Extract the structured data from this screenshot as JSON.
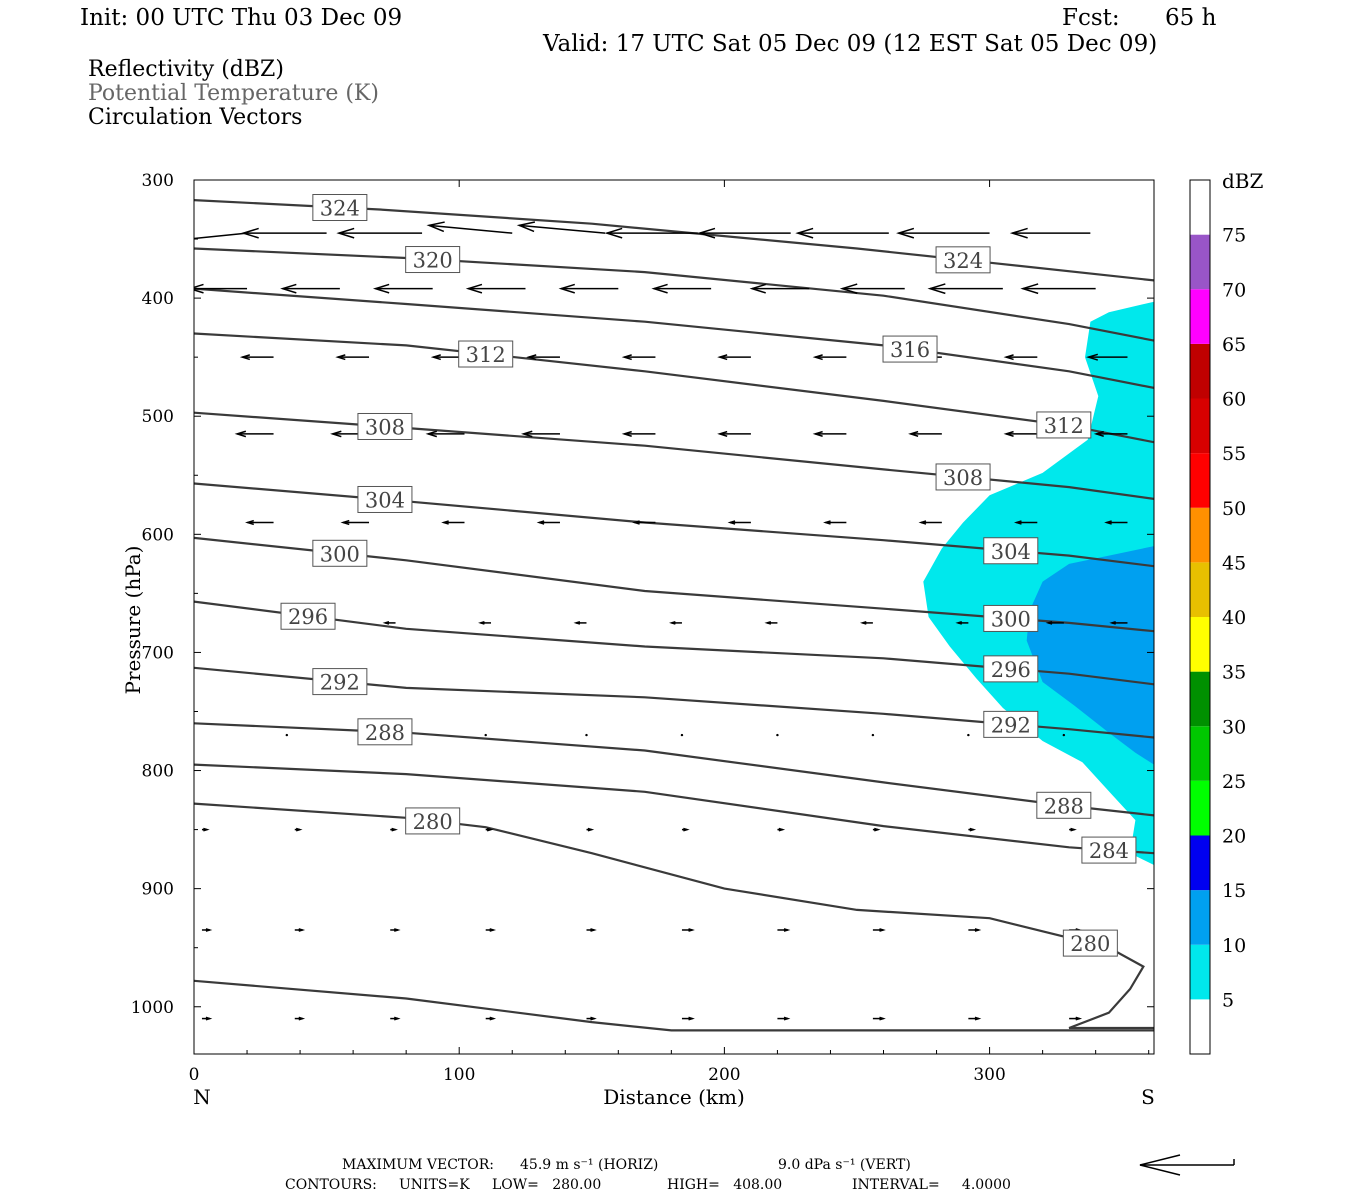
{
  "header": {
    "init": "Init: 00 UTC Thu 03 Dec 09",
    "fcst_label": "Fcst:",
    "fcst_value": "65 h",
    "valid": "Valid: 17 UTC Sat 05 Dec 09 (12 EST Sat 05 Dec 09)"
  },
  "fields": {
    "reflectivity": "Reflectivity (dBZ)",
    "theta": "Potential Temperature (K)",
    "vectors": "Circulation Vectors"
  },
  "colors": {
    "refl_5": "#00e8ec",
    "refl_10": "#00a0f0",
    "contour": "#3a3a3a"
  },
  "chart_data": {
    "type": "cross-section",
    "xlabel": "Distance (km)",
    "ylabel": "Pressure (hPa)",
    "xlim": [
      0,
      362
    ],
    "ylim": [
      1040,
      300
    ],
    "x_ticks": [
      0,
      100,
      200,
      300
    ],
    "y_ticks": [
      300,
      400,
      500,
      600,
      700,
      800,
      900,
      1000
    ],
    "left_end_label": "N",
    "right_end_label": "S",
    "colorbar": {
      "unit": "dBZ",
      "levels": [
        5,
        10,
        15,
        20,
        25,
        30,
        35,
        40,
        45,
        50,
        55,
        60,
        65,
        70,
        75
      ],
      "colors": [
        "#ffffff",
        "#00e8ec",
        "#00a0f0",
        "#0000f0",
        "#00ff00",
        "#00c800",
        "#009000",
        "#ffff00",
        "#e8c000",
        "#ff9000",
        "#ff0000",
        "#d80000",
        "#c00000",
        "#ff00ff",
        "#9955c8",
        "#ffffff"
      ]
    },
    "theta_contours": [
      {
        "value": 324,
        "points": [
          [
            0,
            317
          ],
          [
            70,
            325
          ],
          [
            150,
            337
          ],
          [
            250,
            358
          ],
          [
            300,
            370
          ],
          [
            362,
            385
          ]
        ],
        "labels": [
          [
            55,
            324
          ],
          [
            290,
            324
          ]
        ]
      },
      {
        "value": 320,
        "points": [
          [
            0,
            358
          ],
          [
            80,
            366
          ],
          [
            170,
            378
          ],
          [
            260,
            398
          ],
          [
            330,
            422
          ],
          [
            362,
            436
          ]
        ],
        "labels": [
          [
            90,
            320
          ]
        ]
      },
      {
        "value": 316,
        "points": [
          [
            0,
            392
          ],
          [
            80,
            405
          ],
          [
            170,
            420
          ],
          [
            260,
            440
          ],
          [
            330,
            462
          ],
          [
            362,
            476
          ]
        ],
        "labels": [
          [
            270,
            316
          ]
        ]
      },
      {
        "value": 312,
        "points": [
          [
            0,
            430
          ],
          [
            80,
            440
          ],
          [
            170,
            462
          ],
          [
            260,
            487
          ],
          [
            330,
            508
          ],
          [
            362,
            522
          ]
        ],
        "labels": [
          [
            110,
            312
          ],
          [
            328,
            312
          ]
        ]
      },
      {
        "value": 308,
        "points": [
          [
            0,
            497
          ],
          [
            80,
            510
          ],
          [
            170,
            525
          ],
          [
            260,
            545
          ],
          [
            330,
            560
          ],
          [
            362,
            570
          ]
        ],
        "labels": [
          [
            72,
            308
          ],
          [
            290,
            308
          ]
        ]
      },
      {
        "value": 304,
        "points": [
          [
            0,
            557
          ],
          [
            80,
            572
          ],
          [
            170,
            590
          ],
          [
            260,
            605
          ],
          [
            330,
            618
          ],
          [
            362,
            627
          ]
        ],
        "labels": [
          [
            72,
            304
          ],
          [
            308,
            304
          ]
        ]
      },
      {
        "value": 300,
        "points": [
          [
            0,
            603
          ],
          [
            80,
            622
          ],
          [
            170,
            648
          ],
          [
            260,
            663
          ],
          [
            330,
            675
          ],
          [
            362,
            682
          ]
        ],
        "labels": [
          [
            55,
            300
          ],
          [
            308,
            300
          ]
        ]
      },
      {
        "value": 296,
        "points": [
          [
            0,
            657
          ],
          [
            80,
            680
          ],
          [
            170,
            695
          ],
          [
            260,
            705
          ],
          [
            330,
            718
          ],
          [
            362,
            727
          ]
        ],
        "labels": [
          [
            43,
            296
          ],
          [
            308,
            296
          ]
        ]
      },
      {
        "value": 292,
        "points": [
          [
            0,
            713
          ],
          [
            80,
            730
          ],
          [
            170,
            738
          ],
          [
            260,
            752
          ],
          [
            330,
            765
          ],
          [
            362,
            772
          ]
        ],
        "labels": [
          [
            55,
            292
          ],
          [
            308,
            292
          ]
        ]
      },
      {
        "value": 288,
        "points": [
          [
            0,
            760
          ],
          [
            80,
            768
          ],
          [
            170,
            783
          ],
          [
            260,
            810
          ],
          [
            330,
            830
          ],
          [
            362,
            838
          ]
        ],
        "labels": [
          [
            72,
            288
          ],
          [
            328,
            288
          ]
        ]
      },
      {
        "value": 284,
        "points": [
          [
            0,
            795
          ],
          [
            80,
            803
          ],
          [
            170,
            818
          ],
          [
            260,
            847
          ],
          [
            330,
            865
          ],
          [
            362,
            870
          ]
        ],
        "labels": [
          [
            345,
            284
          ]
        ]
      },
      {
        "value": 280,
        "points": [
          [
            0,
            828
          ],
          [
            80,
            840
          ],
          [
            110,
            848
          ],
          [
            150,
            870
          ],
          [
            200,
            900
          ],
          [
            250,
            918
          ],
          [
            300,
            925
          ],
          [
            345,
            950
          ],
          [
            358,
            966
          ],
          [
            353,
            985
          ],
          [
            345,
            1005
          ],
          [
            330,
            1018
          ],
          [
            362,
            1018
          ]
        ],
        "labels": [
          [
            90,
            280
          ],
          [
            338,
            280
          ]
        ]
      },
      {
        "value": 280,
        "points": [
          [
            0,
            978
          ],
          [
            80,
            993
          ],
          [
            150,
            1013
          ],
          [
            180,
            1020
          ],
          [
            362,
            1020
          ]
        ],
        "labels": []
      }
    ],
    "reflectivity_areas": [
      {
        "dbz": 5,
        "points": [
          [
            362,
            403
          ],
          [
            345,
            412
          ],
          [
            338,
            420
          ],
          [
            336,
            450
          ],
          [
            341,
            483
          ],
          [
            337,
            520
          ],
          [
            320,
            548
          ],
          [
            300,
            567
          ],
          [
            290,
            590
          ],
          [
            282,
            612
          ],
          [
            275,
            640
          ],
          [
            277,
            670
          ],
          [
            285,
            695
          ],
          [
            295,
            722
          ],
          [
            305,
            747
          ],
          [
            320,
            775
          ],
          [
            335,
            793
          ],
          [
            346,
            820
          ],
          [
            355,
            842
          ],
          [
            353,
            870
          ],
          [
            362,
            880
          ]
        ]
      },
      {
        "dbz": 10,
        "points": [
          [
            362,
            610
          ],
          [
            345,
            618
          ],
          [
            330,
            625
          ],
          [
            320,
            640
          ],
          [
            315,
            665
          ],
          [
            314,
            690
          ],
          [
            320,
            725
          ],
          [
            332,
            745
          ],
          [
            345,
            768
          ],
          [
            355,
            785
          ],
          [
            362,
            795
          ]
        ]
      }
    ],
    "vector_rows": [
      {
        "p": 345,
        "x": [
          20,
          50,
          86,
          120,
          155,
          190,
          225,
          262,
          300,
          338
        ],
        "u": [
          -30,
          -32,
          -32,
          -32,
          -33,
          -35,
          -35,
          -35,
          -35,
          -30
        ],
        "w": [
          -1,
          0,
          0,
          1,
          1,
          0,
          0,
          0,
          0,
          0
        ]
      },
      {
        "p": 392,
        "x": [
          20,
          55,
          90,
          125,
          160,
          195,
          232,
          268,
          305,
          340
        ],
        "u": [
          -22,
          -22,
          -22,
          -22,
          -22,
          -22,
          -22,
          -24,
          -28,
          -28
        ],
        "w": [
          0,
          0,
          0,
          0,
          0,
          0,
          0,
          0,
          0,
          0
        ]
      },
      {
        "p": 450,
        "x": [
          30,
          66,
          102,
          138,
          174,
          210,
          246,
          282,
          318,
          352
        ],
        "u": [
          -12,
          -12,
          -12,
          -12,
          -12,
          -12,
          -12,
          -12,
          -12,
          -15
        ],
        "w": [
          0,
          0,
          0,
          0,
          0,
          0,
          0,
          0,
          0,
          0
        ]
      },
      {
        "p": 515,
        "x": [
          30,
          66,
          102,
          138,
          174,
          210,
          246,
          282,
          318,
          352
        ],
        "u": [
          -14,
          -14,
          -14,
          -14,
          -12,
          -12,
          -12,
          -12,
          -12,
          -12
        ],
        "w": [
          0,
          0,
          0,
          0,
          0,
          0,
          0,
          0,
          0,
          0
        ]
      },
      {
        "p": 590,
        "x": [
          30,
          66,
          102,
          138,
          174,
          210,
          246,
          282,
          318,
          352
        ],
        "u": [
          -10,
          -10,
          -8,
          -8,
          -8,
          -8,
          -8,
          -8,
          -8,
          -8
        ],
        "w": [
          0,
          0,
          0,
          0,
          0,
          0,
          0,
          0,
          0,
          0
        ]
      },
      {
        "p": 675,
        "x": [
          40,
          76,
          112,
          148,
          184,
          220,
          256,
          292,
          328,
          352
        ],
        "u": [
          -4,
          -4,
          -4,
          -4,
          -4,
          -4,
          -4,
          -4,
          -6,
          -6
        ],
        "w": [
          0,
          0,
          0,
          0,
          0,
          0,
          0,
          0,
          0,
          0
        ]
      },
      {
        "p": 770,
        "x": [
          35,
          110,
          148,
          184,
          220,
          256,
          292,
          328
        ],
        "u": [
          0,
          0,
          0,
          0,
          0,
          0,
          0,
          0
        ],
        "w": [
          0,
          0,
          0,
          0,
          0,
          0,
          0,
          0
        ]
      },
      {
        "p": 850,
        "x": [
          3,
          38,
          74,
          110,
          148,
          184,
          220,
          256,
          292,
          330
        ],
        "u": [
          2,
          2,
          2,
          2,
          2,
          2,
          2,
          2,
          2,
          2
        ],
        "w": [
          0,
          0,
          0,
          0,
          0,
          0,
          0,
          0,
          0,
          0
        ]
      },
      {
        "p": 935,
        "x": [
          3,
          38,
          74,
          110,
          148,
          184,
          220,
          256,
          292,
          330
        ],
        "u": [
          3,
          3,
          3,
          3,
          3,
          4,
          4,
          4,
          4,
          4
        ],
        "w": [
          0,
          0,
          0,
          0,
          0,
          0,
          0,
          0,
          0,
          0
        ]
      },
      {
        "p": 1010,
        "x": [
          3,
          38,
          74,
          110,
          148,
          184,
          220,
          256,
          292,
          330
        ],
        "u": [
          3,
          3,
          3,
          3,
          3,
          4,
          4,
          4,
          4,
          4
        ],
        "w": [
          0,
          0,
          0,
          0,
          0,
          0,
          0,
          0,
          0,
          0
        ]
      }
    ]
  },
  "footer": {
    "max_vector_label": "MAXIMUM VECTOR:",
    "max_vector_horiz": "45.9 m s⁻¹ (HORIZ)",
    "max_vector_vert": "9.0 dPa s⁻¹ (VERT)",
    "contours_label": "CONTOURS:",
    "units": "UNITS=K",
    "low": "LOW=   280.00",
    "high": "HIGH=   408.00",
    "interval": "INTERVAL=     4.0000"
  }
}
